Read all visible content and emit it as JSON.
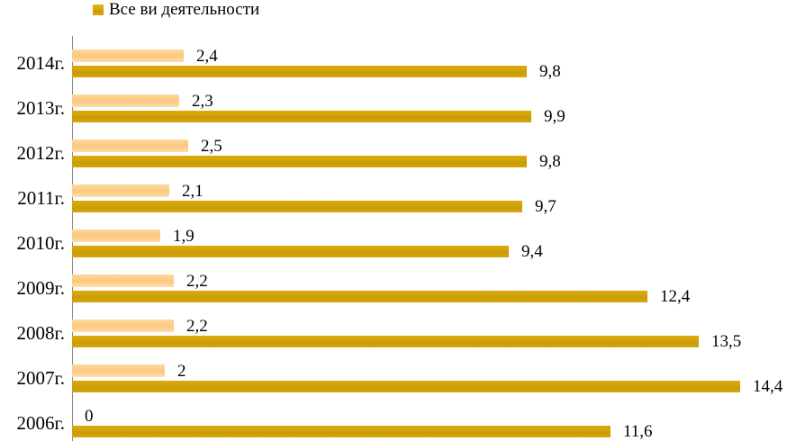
{
  "chart_data": {
    "type": "bar",
    "orientation": "horizontal",
    "title": "",
    "grid": false,
    "legend": {
      "position": "top",
      "entries": [
        {
          "label": "Все ви деятельности",
          "color": "#d9a60b"
        }
      ]
    },
    "categories": [
      "2014г.",
      "2013г.",
      "2012г.",
      "2011г.",
      "2010г.",
      "2009г.",
      "2008г.",
      "2007г.",
      "2006г."
    ],
    "series": [
      {
        "name": "",
        "role": "light",
        "color": "#fbc87e",
        "values": [
          2.4,
          2.3,
          2.5,
          2.1,
          1.9,
          2.2,
          2.2,
          2,
          0
        ],
        "labels": [
          "2,4",
          "2,3",
          "2,5",
          "2,1",
          "1,9",
          "2,2",
          "2,2",
          "2",
          "0"
        ]
      },
      {
        "name": "Все ви деятельности",
        "role": "dark",
        "color": "#d5a40a",
        "values": [
          9.8,
          9.9,
          9.8,
          9.7,
          9.4,
          12.4,
          13.5,
          14.4,
          11.6
        ],
        "labels": [
          "9,8",
          "9,9",
          "9,8",
          "9,7",
          "9,4",
          "12,4",
          "13,5",
          "14,4",
          "11,6"
        ]
      }
    ],
    "xlim": [
      0,
      15.4
    ]
  }
}
